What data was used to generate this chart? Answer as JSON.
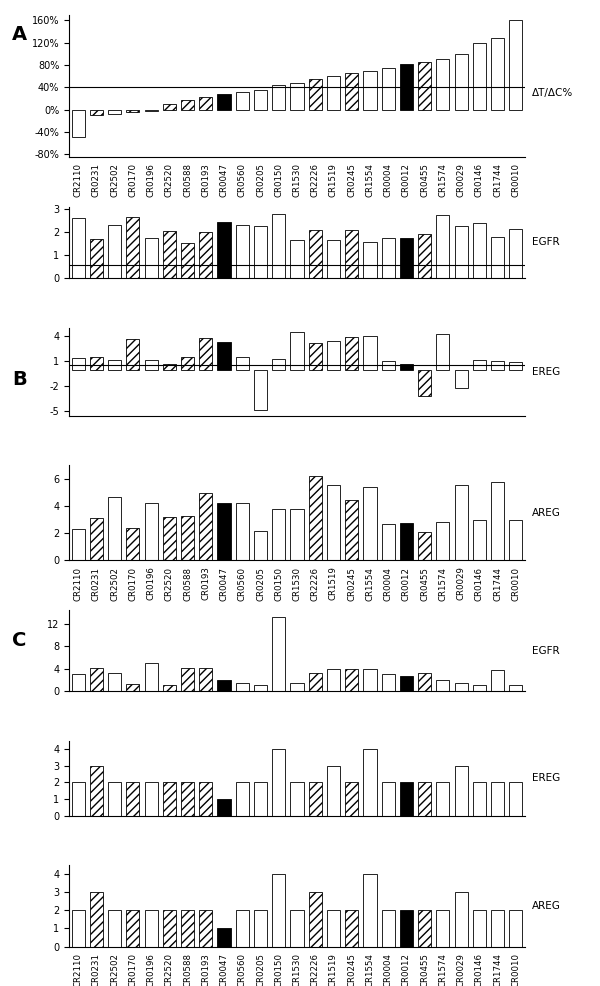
{
  "categories": [
    "CR2110",
    "CR0231",
    "CR2502",
    "CR0170",
    "CR0196",
    "CR2520",
    "CR0588",
    "CR0193",
    "CR0047",
    "CR0560",
    "CR0205",
    "CR0150",
    "CR1530",
    "CR2226",
    "CR1519",
    "CR0245",
    "CR1554",
    "CR0004",
    "CR0012",
    "CR0455",
    "CR1574",
    "CR0029",
    "CR0146",
    "CR1744",
    "CR0010"
  ],
  "panel_A_values": [
    -50,
    -10,
    -8,
    -5,
    -3,
    10,
    18,
    22,
    28,
    32,
    35,
    44,
    47,
    55,
    60,
    65,
    70,
    75,
    82,
    85,
    90,
    100,
    120,
    128,
    160
  ],
  "panel_A_styles": [
    "white",
    "hatch",
    "white",
    "hatch",
    "white",
    "hatch",
    "hatch",
    "hatch",
    "black",
    "white",
    "white",
    "white",
    "white",
    "hatch",
    "white",
    "hatch",
    "white",
    "white",
    "black",
    "hatch",
    "white",
    "white",
    "white",
    "white",
    "white"
  ],
  "panel_B_EGFR": [
    2.6,
    1.7,
    2.3,
    2.65,
    1.75,
    2.05,
    1.5,
    2.0,
    2.45,
    2.3,
    2.25,
    2.8,
    1.65,
    2.1,
    1.65,
    2.1,
    1.55,
    1.75,
    1.75,
    1.9,
    2.75,
    2.25,
    2.4,
    1.8,
    2.15
  ],
  "panel_B_EGFR_styles": [
    "white",
    "hatch",
    "white",
    "hatch",
    "white",
    "hatch",
    "hatch",
    "hatch",
    "black",
    "white",
    "white",
    "white",
    "white",
    "hatch",
    "white",
    "hatch",
    "white",
    "white",
    "black",
    "hatch",
    "white",
    "white",
    "white",
    "white",
    "white"
  ],
  "panel_B_EREG": [
    1.4,
    1.45,
    1.2,
    3.7,
    1.2,
    0.7,
    1.5,
    3.75,
    3.3,
    1.45,
    -4.8,
    1.25,
    4.45,
    3.2,
    3.35,
    3.85,
    4.0,
    1.05,
    0.7,
    -3.1,
    4.2,
    -2.2,
    1.1,
    1.0,
    0.9
  ],
  "panel_B_EREG_styles": [
    "white",
    "hatch",
    "white",
    "hatch",
    "white",
    "hatch",
    "hatch",
    "hatch",
    "black",
    "white",
    "white",
    "white",
    "white",
    "hatch",
    "white",
    "hatch",
    "white",
    "white",
    "black",
    "hatch",
    "white",
    "white",
    "white",
    "white",
    "white"
  ],
  "panel_B_AREG": [
    2.3,
    3.1,
    4.7,
    2.35,
    4.2,
    3.2,
    3.3,
    5.0,
    4.2,
    4.2,
    2.15,
    3.75,
    3.75,
    6.2,
    5.55,
    4.45,
    5.4,
    2.7,
    2.75,
    2.05,
    2.85,
    5.55,
    3.0,
    5.8,
    3.0
  ],
  "panel_B_AREG_styles": [
    "white",
    "hatch",
    "white",
    "hatch",
    "white",
    "hatch",
    "hatch",
    "hatch",
    "black",
    "white",
    "white",
    "white",
    "white",
    "hatch",
    "white",
    "hatch",
    "white",
    "white",
    "black",
    "hatch",
    "white",
    "white",
    "white",
    "white",
    "white"
  ],
  "panel_C_EGFR": [
    3.0,
    4.2,
    3.2,
    1.3,
    5.0,
    1.1,
    4.2,
    4.2,
    2.0,
    1.4,
    1.1,
    13.2,
    1.4,
    3.3,
    4.0,
    4.0,
    4.0,
    3.1,
    2.7,
    3.3,
    2.0,
    1.4,
    1.2,
    3.8,
    1.2
  ],
  "panel_C_EGFR_styles": [
    "white",
    "hatch",
    "white",
    "hatch",
    "white",
    "hatch",
    "hatch",
    "hatch",
    "black",
    "white",
    "white",
    "white",
    "white",
    "hatch",
    "white",
    "hatch",
    "white",
    "white",
    "black",
    "hatch",
    "white",
    "white",
    "white",
    "white",
    "white"
  ],
  "panel_C_EREG": [
    2.0,
    3.0,
    2.0,
    2.0,
    2.0,
    2.0,
    2.0,
    2.0,
    1.0,
    2.0,
    2.0,
    4.0,
    2.0,
    2.0,
    3.0,
    2.0,
    4.0,
    2.0,
    2.0,
    2.0,
    2.0,
    3.0,
    2.0,
    2.0,
    2.0
  ],
  "panel_C_EREG_styles": [
    "white",
    "hatch",
    "white",
    "hatch",
    "white",
    "hatch",
    "hatch",
    "hatch",
    "black",
    "white",
    "white",
    "white",
    "white",
    "hatch",
    "white",
    "hatch",
    "white",
    "white",
    "black",
    "hatch",
    "white",
    "white",
    "white",
    "white",
    "white"
  ],
  "panel_C_AREG": [
    2.0,
    3.0,
    2.0,
    2.0,
    2.0,
    2.0,
    2.0,
    2.0,
    1.0,
    2.0,
    2.0,
    4.0,
    2.0,
    3.0,
    2.0,
    2.0,
    4.0,
    2.0,
    2.0,
    2.0,
    2.0,
    3.0,
    2.0,
    2.0,
    2.0
  ],
  "panel_C_AREG_styles": [
    "white",
    "hatch",
    "white",
    "hatch",
    "white",
    "hatch",
    "hatch",
    "hatch",
    "black",
    "white",
    "white",
    "white",
    "white",
    "hatch",
    "white",
    "hatch",
    "white",
    "white",
    "black",
    "hatch",
    "white",
    "white",
    "white",
    "white",
    "white"
  ],
  "label_A": "A",
  "label_B": "B",
  "label_C": "C",
  "ylabel_A": "ΔT/ΔC%",
  "ylabel_EGFR": "EGFR",
  "ylabel_EREG": "EREG",
  "ylabel_AREG": "AREG"
}
